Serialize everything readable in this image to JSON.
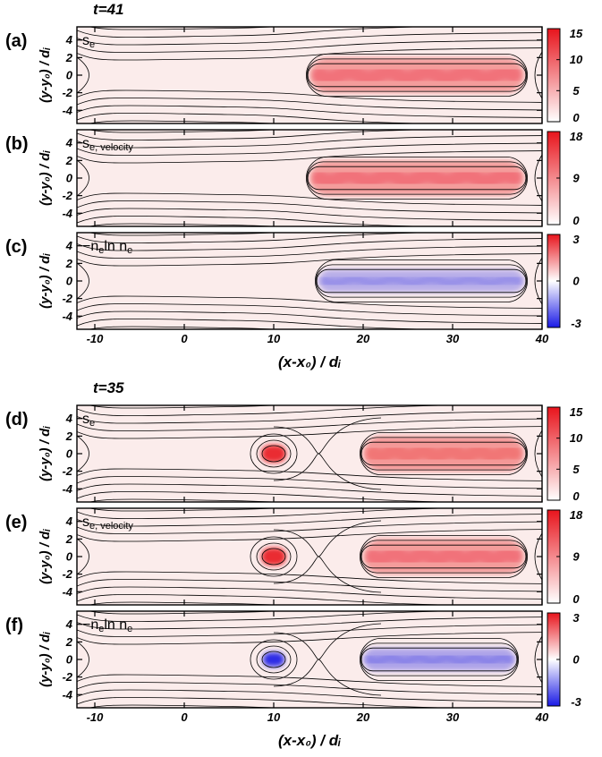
{
  "chart_data": [
    {
      "group_title": "t=41",
      "xlabel": "(x-x₀) / dᵢ",
      "panels": [
        {
          "label": "(a)",
          "quantity": "s_e",
          "sub": "",
          "type": "heatmap",
          "colormap": "white-red",
          "ylabel": "(y-y₀) / dᵢ",
          "xlim": [
            -12,
            40
          ],
          "ylim": [
            -5.5,
            5.5
          ],
          "cbar_ticks": [
            "15",
            "10",
            "5",
            "0"
          ],
          "cbar_range": [
            0,
            15
          ],
          "islands": [
            {
              "x0": 14,
              "x1": 38,
              "halfwidth": 2.0,
              "value": 0.38
            }
          ],
          "xpoints": []
        },
        {
          "label": "(b)",
          "quantity": "s_e",
          "sub": ", velocity",
          "type": "heatmap",
          "colormap": "white-red",
          "ylabel": "(y-y₀) / dᵢ",
          "xlim": [
            -12,
            40
          ],
          "ylim": [
            -5.5,
            5.5
          ],
          "cbar_ticks": [
            "18",
            "9",
            "0"
          ],
          "cbar_range": [
            0,
            18
          ],
          "islands": [
            {
              "x0": 14,
              "x1": 38,
              "halfwidth": 2.0,
              "value": 0.38
            }
          ],
          "xpoints": []
        },
        {
          "label": "(c)",
          "quantity": "-n_e ln n_e",
          "sub": "",
          "type": "heatmap",
          "colormap": "blue-white-red",
          "ylabel": "(y-y₀) / dᵢ",
          "xlim": [
            -12,
            40
          ],
          "ylim": [
            -5.5,
            5.5
          ],
          "cbar_ticks": [
            "3",
            "0",
            "-3"
          ],
          "cbar_range": [
            -3,
            3
          ],
          "islands": [
            {
              "x0": 15,
              "x1": 38,
              "halfwidth": 1.3,
              "value": -0.3
            }
          ],
          "xpoints": [],
          "xticks": [
            "-10",
            "0",
            "10",
            "20",
            "30",
            "40"
          ]
        }
      ]
    },
    {
      "group_title": "t=35",
      "xlabel": "(x-x₀) / dᵢ",
      "panels": [
        {
          "label": "(d)",
          "quantity": "s_e",
          "sub": "",
          "type": "heatmap",
          "colormap": "white-red",
          "ylabel": "(y-y₀) / dᵢ",
          "xlim": [
            -12,
            40
          ],
          "ylim": [
            -5.5,
            5.5
          ],
          "cbar_ticks": [
            "15",
            "10",
            "5",
            "0"
          ],
          "cbar_range": [
            0,
            15
          ],
          "islands": [
            {
              "x0": 20,
              "x1": 38,
              "halfwidth": 2.0,
              "value": 0.4
            },
            {
              "x0": 8.6,
              "x1": 11.4,
              "halfwidth": 1.0,
              "value": 0.9
            }
          ],
          "xpoints": [
            15
          ]
        },
        {
          "label": "(e)",
          "quantity": "s_e",
          "sub": ", velocity",
          "type": "heatmap",
          "colormap": "white-red",
          "ylabel": "(y-y₀) / dᵢ",
          "xlim": [
            -12,
            40
          ],
          "ylim": [
            -5.5,
            5.5
          ],
          "cbar_ticks": [
            "18",
            "9",
            "0"
          ],
          "cbar_range": [
            0,
            18
          ],
          "islands": [
            {
              "x0": 20,
              "x1": 38,
              "halfwidth": 2.0,
              "value": 0.38
            },
            {
              "x0": 8.6,
              "x1": 11.4,
              "halfwidth": 1.0,
              "value": 0.9
            }
          ],
          "xpoints": [
            15
          ]
        },
        {
          "label": "(f)",
          "quantity": "-n_e ln n_e",
          "sub": "",
          "type": "heatmap",
          "colormap": "blue-white-red",
          "ylabel": "(y-y₀) / dᵢ",
          "xlim": [
            -12,
            40
          ],
          "ylim": [
            -5.5,
            5.5
          ],
          "cbar_ticks": [
            "3",
            "0",
            "-3"
          ],
          "cbar_range": [
            -3,
            3
          ],
          "islands": [
            {
              "x0": 20,
              "x1": 37,
              "halfwidth": 1.3,
              "value": -0.35
            },
            {
              "x0": 8.8,
              "x1": 11.2,
              "halfwidth": 0.8,
              "value": -0.9
            }
          ],
          "xpoints": [
            15
          ],
          "xticks": [
            "-10",
            "0",
            "10",
            "20",
            "30",
            "40"
          ]
        }
      ]
    }
  ],
  "yticks": [
    "4",
    "2",
    "0",
    "-2",
    "-4"
  ],
  "yvalues": [
    4,
    2,
    0,
    -2,
    -4
  ],
  "xtickvalues": [
    -10,
    0,
    10,
    20,
    30,
    40
  ],
  "colors": {
    "red": "#e8141c",
    "blue": "#1a1ae6",
    "background_tint": "#fbeceb",
    "line": "#000000"
  }
}
